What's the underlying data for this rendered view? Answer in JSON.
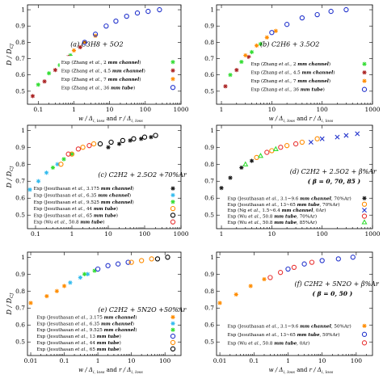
{
  "chart_data": [
    {
      "type": "scatter",
      "title": "(a) C3H8 + 5O2",
      "xscale": "log",
      "xlim": [
        0.05,
        1000
      ],
      "ylim": [
        0.42,
        1.03
      ],
      "xticks": [
        0.1,
        1,
        10,
        100,
        1000
      ],
      "xticklabels": [
        "0.1",
        "1",
        "10",
        "100",
        "1000"
      ],
      "yticks": [
        0.5,
        0.6,
        0.7,
        0.8,
        0.9,
        1
      ],
      "yticklabels": [
        "0.5",
        "0.6",
        "0.7",
        "0.8",
        "0.9",
        "1"
      ],
      "show_ylabel": true,
      "show_xlabel": true,
      "series": [
        {
          "name": "Exp (Zhang et al., 2 mm channel)",
          "marker": "asterisk",
          "color": "#33dd33",
          "x": [
            0.1,
            0.2,
            0.4,
            0.8
          ],
          "y": [
            0.54,
            0.61,
            0.66,
            0.72
          ]
        },
        {
          "name": "Exp (Zhang et al., 4.5 mm channel)",
          "marker": "asterisk",
          "color": "#aa2222",
          "x": [
            0.07,
            0.15,
            0.3,
            0.7,
            1.5
          ],
          "y": [
            0.47,
            0.56,
            0.63,
            0.71,
            0.77
          ]
        },
        {
          "name": "Exp (Zhang et al., 7 mm channel)",
          "marker": "asterisk",
          "color": "#ff8c00",
          "x": [
            0.5,
            1,
            2,
            4
          ],
          "y": [
            0.69,
            0.75,
            0.8,
            0.84
          ]
        },
        {
          "name": "Exp (Zhang et al., 36 mm tube)",
          "marker": "circle",
          "color": "#2233cc",
          "x": [
            2,
            4,
            8,
            15,
            30,
            60,
            120,
            250
          ],
          "y": [
            0.8,
            0.85,
            0.9,
            0.93,
            0.96,
            0.98,
            0.99,
            1.0
          ]
        }
      ],
      "legend_lines": [
        {
          "pre": "Exp (Zhang ",
          "it": "et al.",
          "mid": ", 2 ",
          "itb": "mm channel",
          "post": ")"
        },
        {
          "pre": "Exp (Zhang ",
          "it": "et al.",
          "mid": ", 4.5 ",
          "itb": "mm channel",
          "post": ")"
        },
        {
          "pre": "Exp (Zhang ",
          "it": "et al.",
          "mid": ", 7 ",
          "itb": "mm channel",
          "post": ")"
        },
        {
          "pre": "Exp (Zhang ",
          "it": "et al.",
          "mid": ", 36 ",
          "itb": "mm tube",
          "post": ")"
        }
      ]
    },
    {
      "type": "scatter",
      "title": "(b) C2H6 + 3.5O2",
      "xscale": "log",
      "xlim": [
        0.8,
        1000
      ],
      "ylim": [
        0.42,
        1.03
      ],
      "xticks": [
        1,
        10,
        100,
        1000
      ],
      "xticklabels": [
        "1",
        "10",
        "100",
        "1000"
      ],
      "yticks": [
        0.5,
        0.6,
        0.7,
        0.8,
        0.9,
        1
      ],
      "yticklabels": [
        "0.5",
        "0.6",
        "0.7",
        "0.8",
        "0.9",
        "1"
      ],
      "show_ylabel": false,
      "show_xlabel": true,
      "series": [
        {
          "name": "Exp (Zhang et al., 2 mm channel)",
          "marker": "asterisk",
          "color": "#33dd33",
          "x": [
            1.5,
            2.5,
            4,
            6
          ],
          "y": [
            0.6,
            0.68,
            0.74,
            0.79
          ]
        },
        {
          "name": "Exp (Zhang et al., 4.5 mm channel)",
          "marker": "asterisk",
          "color": "#aa2222",
          "x": [
            1.2,
            2,
            3.5
          ],
          "y": [
            0.53,
            0.63,
            0.71
          ]
        },
        {
          "name": "Exp (Zhang et al., 7 mm channel)",
          "marker": "asterisk",
          "color": "#ff8c00",
          "x": [
            3,
            5,
            8,
            12
          ],
          "y": [
            0.72,
            0.78,
            0.83,
            0.87
          ]
        },
        {
          "name": "Exp (Zhang et al., 36 mm tube)",
          "marker": "circle",
          "color": "#2233cc",
          "x": [
            10,
            20,
            40,
            80,
            150,
            300
          ],
          "y": [
            0.86,
            0.91,
            0.95,
            0.97,
            0.99,
            1.0
          ]
        }
      ],
      "legend_lines": [
        {
          "pre": "Exp (Zhang ",
          "it": "et al.",
          "mid": ", 2 ",
          "itb": "mm channel",
          "post": ")"
        },
        {
          "pre": "Exp (Zhang ",
          "it": "et al.",
          "mid": ", 4.5 ",
          "itb": "mm channel",
          "post": ")"
        },
        {
          "pre": "Exp (Zhang ",
          "it": "et al.",
          "mid": ", 7 ",
          "itb": "mm channel",
          "post": ")"
        },
        {
          "pre": "Exp (Zhang ",
          "it": "et al.",
          "mid": ", 36 ",
          "itb": "mm tube",
          "post": ")"
        }
      ]
    },
    {
      "type": "scatter",
      "title": "(c) C2H2 + 2.5O2 +70%Ar",
      "xscale": "log",
      "xlim": [
        0.06,
        1000
      ],
      "ylim": [
        0.42,
        1.03
      ],
      "xticks": [
        0.1,
        1,
        10,
        100,
        1000
      ],
      "xticklabels": [
        "0.1",
        "1",
        "10",
        "100",
        "1000"
      ],
      "yticks": [
        0.5,
        0.6,
        0.7,
        0.8,
        0.9,
        1
      ],
      "yticklabels": [
        "0.5",
        "0.6",
        "0.7",
        "0.8",
        "0.9",
        "1"
      ],
      "show_ylabel": true,
      "show_xlabel": false,
      "series": [
        {
          "name": "Exp (Jesuthasan et al., 3.175 mm channel)",
          "marker": "asterisk",
          "color": "#1a1a1a",
          "x": [
            10,
            20,
            40,
            80,
            150
          ],
          "y": [
            0.9,
            0.92,
            0.94,
            0.95,
            0.96
          ]
        },
        {
          "name": "Exp (Jesuthasan et al., 6.35 mm channel)",
          "marker": "asterisk",
          "color": "#33bbee",
          "x": [
            0.07,
            0.12,
            0.2,
            0.4
          ],
          "y": [
            0.65,
            0.7,
            0.75,
            0.8
          ]
        },
        {
          "name": "Exp (Jesuthasan et al., 9.525 mm channel)",
          "marker": "asterisk",
          "color": "#33dd33",
          "x": [
            0.3,
            0.6,
            1
          ],
          "y": [
            0.78,
            0.83,
            0.86
          ]
        },
        {
          "name": "Exp (Jesuthasan et al., 44 mm tube)",
          "marker": "circle",
          "color": "#ff8c00",
          "x": [
            0.5,
            1,
            2,
            4
          ],
          "y": [
            0.8,
            0.86,
            0.9,
            0.92
          ]
        },
        {
          "name": "Exp (Jesuthasan et al., 65 mm tube)",
          "marker": "circle",
          "color": "#000000",
          "x": [
            6,
            12,
            25,
            50,
            100,
            200
          ],
          "y": [
            0.92,
            0.93,
            0.94,
            0.95,
            0.96,
            0.97
          ]
        },
        {
          "name": "Exp (Wu et al., 50.8 mm tube)",
          "marker": "circle",
          "color": "#e83333",
          "x": [
            0.8,
            1.5,
            3
          ],
          "y": [
            0.86,
            0.89,
            0.91
          ]
        }
      ],
      "legend_lines": [
        {
          "pre": "Exp (Jesuthasan ",
          "it": "et al.",
          "mid": ", 3.175 ",
          "itb": "mm channel",
          "post": ")"
        },
        {
          "pre": "Exp (Jesuthasan ",
          "it": "et al.",
          "mid": ", 6.35 ",
          "itb": "mm channel",
          "post": ")"
        },
        {
          "pre": "Exp (Jesuthasan ",
          "it": "et al.",
          "mid": ", 9.525 ",
          "itb": "mm channel",
          "post": ")"
        },
        {
          "pre": "Exp (Jesuthasan ",
          "it": "et al.",
          "mid": ", 44 ",
          "itb": "mm tube",
          "post": ")"
        },
        {
          "pre": "Exp (Jesuthasan ",
          "it": "et al.",
          "mid": ", 65 ",
          "itb": "mm tube",
          "post": ")"
        },
        {
          "pre": "Exp (Wu ",
          "it": "et al.",
          "mid": ", 50.8 ",
          "itb": "mm tube",
          "post": ")"
        }
      ]
    },
    {
      "type": "scatter",
      "title": "(d) C2H2 + 2.5O2 + β%Ar",
      "subtitle": "( β = 0, 70, 85 )",
      "xscale": "log",
      "xlim": [
        0.8,
        1000
      ],
      "ylim": [
        0.42,
        1.03
      ],
      "xticks": [
        1,
        10,
        100,
        1000
      ],
      "xticklabels": [
        "1",
        "10",
        "100",
        "1000"
      ],
      "yticks": [
        0.5,
        0.6,
        0.7,
        0.8,
        0.9,
        1
      ],
      "yticklabels": [
        "0.5",
        "0.6",
        "0.7",
        "0.8",
        "0.9",
        "1"
      ],
      "show_ylabel": false,
      "show_xlabel": false,
      "series": [
        {
          "name": "Exp (Jesuthasan et al., 3.1–9.6 mm channel, 70%Ar)",
          "marker": "asterisk",
          "color": "#1a1a1a",
          "x": [
            1,
            1.5,
            2.5,
            4
          ],
          "y": [
            0.66,
            0.72,
            0.78,
            0.82
          ]
        },
        {
          "name": "Exp (Jesuthasan et al., 13–65 mm tube, 70%Ar)",
          "marker": "circle",
          "color": "#ff8c00",
          "x": [
            5,
            10,
            20,
            40,
            80
          ],
          "y": [
            0.84,
            0.88,
            0.91,
            0.93,
            0.95
          ]
        },
        {
          "name": "Exp (Ng et al., 1.5–6.4 mm channel, 0Ar)",
          "marker": "x",
          "color": "#2233cc",
          "x": [
            60,
            100,
            200,
            300,
            500
          ],
          "y": [
            0.93,
            0.95,
            0.96,
            0.97,
            0.98
          ]
        },
        {
          "name": "Exp (Wu et al., 50.8 mm tube, 70%Ar)",
          "marker": "circle",
          "color": "#e83333",
          "x": [
            8,
            15,
            30
          ],
          "y": [
            0.87,
            0.9,
            0.92
          ]
        },
        {
          "name": "Exp (Wu et al., 50.8 mm tube, 85%Ar)",
          "marker": "triangle",
          "color": "#33dd33",
          "x": [
            3,
            6,
            12
          ],
          "y": [
            0.8,
            0.85,
            0.89
          ]
        }
      ],
      "legend_lines": [
        {
          "pre": "Exp (Jesuthasan ",
          "it": "et al.",
          "mid": ", 3.1~9.6 ",
          "itb": "mm channel",
          "post": ", 70%Ar)"
        },
        {
          "pre": "Exp (Jesuthasan ",
          "it": "et al.",
          "mid": ", 13~65 ",
          "itb": "mm tube",
          "post": ", 70%Ar)"
        },
        {
          "pre": "Exp (Ng ",
          "it": "et al.",
          "mid": ", 1.5~6.4 ",
          "itb": "mm channel",
          "post": ", 0Ar)"
        },
        {
          "pre": "Exp (Wu ",
          "it": "et al.",
          "mid": ", 50.8 ",
          "itb": "mm tube",
          "post": ", 70%Ar)"
        },
        {
          "pre": "Exp (Wu ",
          "it": "et al.",
          "mid": ", 50.8 ",
          "itb": "mm tube",
          "post": ", 85%Ar)"
        }
      ]
    },
    {
      "type": "scatter",
      "title": "(e) C2H2 + 5N2O +50%Ar",
      "xscale": "log",
      "xlim": [
        0.008,
        300
      ],
      "ylim": [
        0.42,
        1.03
      ],
      "xticks": [
        0.01,
        0.1,
        1,
        10,
        100
      ],
      "xticklabels": [
        "0.01",
        "0.1",
        "1",
        "10",
        "100"
      ],
      "yticks": [
        0.5,
        0.6,
        0.7,
        0.8,
        0.9,
        1
      ],
      "yticklabels": [
        "0.5",
        "0.6",
        "0.7",
        "0.8",
        "0.9",
        "1"
      ],
      "show_ylabel": true,
      "show_xlabel": true,
      "series": [
        {
          "name": "Exp (Jesuthasan et al., 3.175 mm channel)",
          "marker": "asterisk",
          "color": "#ff8c00",
          "x": [
            0.01,
            0.03,
            0.06,
            0.1
          ],
          "y": [
            0.73,
            0.77,
            0.8,
            0.83
          ]
        },
        {
          "name": "Exp (Jesuthasan et al., 6.35 mm channel)",
          "marker": "asterisk",
          "color": "#33bbee",
          "x": [
            0.15,
            0.3,
            0.5
          ],
          "y": [
            0.85,
            0.88,
            0.9
          ]
        },
        {
          "name": "Exp (Jesuthasan et al., 9.525 mm channel)",
          "marker": "asterisk",
          "color": "#33dd33",
          "x": [
            0.4,
            0.8
          ],
          "y": [
            0.9,
            0.92
          ]
        },
        {
          "name": "Exp (Jesuthasan et al., 13 mm tube)",
          "marker": "circle",
          "color": "#2233cc",
          "x": [
            1,
            2,
            4,
            8
          ],
          "y": [
            0.93,
            0.95,
            0.96,
            0.97
          ]
        },
        {
          "name": "Exp (Jesuthasan et al., 44 mm tube)",
          "marker": "circle",
          "color": "#ff8c00",
          "x": [
            10,
            20,
            40
          ],
          "y": [
            0.97,
            0.98,
            0.99
          ]
        },
        {
          "name": "Exp (Jesuthasan et al., 65 mm tube)",
          "marker": "circle",
          "color": "#000000",
          "x": [
            60,
            120
          ],
          "y": [
            0.99,
            1.0
          ]
        }
      ],
      "legend_lines": [
        {
          "pre": "Exp (Jesuthasan ",
          "it": "et al.",
          "mid": ", 3.175 ",
          "itb": "mm channel",
          "post": ")"
        },
        {
          "pre": "Exp (Jesuthasan ",
          "it": "et al.",
          "mid": ", 6.35 ",
          "itb": "mm channel",
          "post": ")"
        },
        {
          "pre": "Exp (Jesuthasan ",
          "it": "et al.",
          "mid": ", 9.525 ",
          "itb": "mm channel",
          "post": ")"
        },
        {
          "pre": "Exp (Jesuthasan ",
          "it": "et al.",
          "mid": ", 13 ",
          "itb": "mm tube",
          "post": ")"
        },
        {
          "pre": "Exp (Jesuthasan ",
          "it": "et al.",
          "mid": ", 44 ",
          "itb": "mm tube",
          "post": ")"
        },
        {
          "pre": "Exp (Jesuthasan ",
          "it": "et al.",
          "mid": ", 65 ",
          "itb": "mm tube",
          "post": ")"
        }
      ]
    },
    {
      "type": "scatter",
      "title": "(f) C2H2 + 5N2O + β%Ar",
      "subtitle": "( β = 0, 50 )",
      "xscale": "log",
      "xlim": [
        0.008,
        300
      ],
      "ylim": [
        0.42,
        1.03
      ],
      "xticks": [
        0.01,
        0.1,
        1,
        10,
        100
      ],
      "xticklabels": [
        "0.01",
        "0.1",
        "1",
        "10",
        "100"
      ],
      "yticks": [
        0.5,
        0.6,
        0.7,
        0.8,
        0.9,
        1
      ],
      "yticklabels": [
        "0.5",
        "0.6",
        "0.7",
        "0.8",
        "0.9",
        "1"
      ],
      "show_ylabel": false,
      "show_xlabel": true,
      "series": [
        {
          "name": "Exp (Jesuthasan et al., 3.1–9.6 mm channel, 50%Ar)",
          "marker": "asterisk",
          "color": "#ff8c00",
          "x": [
            0.01,
            0.03,
            0.08,
            0.2
          ],
          "y": [
            0.73,
            0.78,
            0.83,
            0.87
          ]
        },
        {
          "name": "Exp (Jesuthasan et al., 13–65 mm tube, 50%Ar)",
          "marker": "circle",
          "color": "#2233cc",
          "x": [
            1,
            3,
            10,
            30,
            80
          ],
          "y": [
            0.93,
            0.96,
            0.98,
            0.99,
            1.0
          ]
        },
        {
          "name": "Exp (Wu et al., 50.8 mm tube, 0Ar)",
          "marker": "circle",
          "color": "#e83333",
          "x": [
            0.3,
            0.6,
            1.5,
            5
          ],
          "y": [
            0.88,
            0.91,
            0.94,
            0.97
          ]
        }
      ],
      "legend_lines": [
        {
          "pre": "Exp (Jesuthasan ",
          "it": "et al.",
          "mid": ", 3.1~9.6 ",
          "itb": "mm channel",
          "post": ", 50%Ar)"
        },
        {
          "pre": "Exp (Jesuthasan ",
          "it": "et al.",
          "mid": ", 13~65 ",
          "itb": "mm tube",
          "post": ", 50%Ar)"
        },
        {
          "pre": "Exp (Wu ",
          "it": "et al.",
          "mid": ", 50.8 ",
          "itb": "mm tube",
          "post": ", 0Ar)"
        }
      ]
    }
  ],
  "labels": {
    "ylabel": "D / D",
    "ylabel_sub": "CJ",
    "xlabel_a": "w / Δ",
    "xlabel_sub": "i, loss",
    "xlabel_mid": " and ",
    "xlabel_b": "r / Δ"
  }
}
